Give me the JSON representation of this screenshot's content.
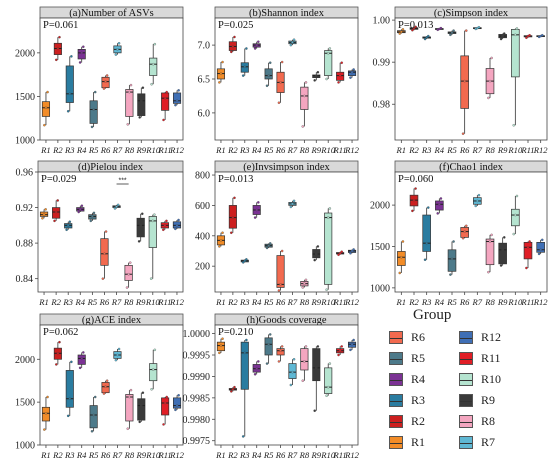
{
  "categories": [
    "R1",
    "R2",
    "R3",
    "R4",
    "R5",
    "R6",
    "R7",
    "R8",
    "R9",
    "R10",
    "R11",
    "R12"
  ],
  "colors": {
    "R1": "#f28c28",
    "R2": "#cc1f1f",
    "R3": "#2a7ca0",
    "R4": "#7b3294",
    "R5": "#4d7a8a",
    "R6": "#f26a4f",
    "R7": "#5fb8d4",
    "R8": "#f4a6c0",
    "R9": "#3a3a3a",
    "R10": "#b5e4d0",
    "R11": "#e01e26",
    "R12": "#3f6fb5"
  },
  "legend": {
    "title": "Group",
    "col1": [
      "R6",
      "R5",
      "R4",
      "R3",
      "R2",
      "R1"
    ],
    "col2": [
      "R12",
      "R11",
      "R10",
      "R9",
      "R8",
      "R7"
    ]
  },
  "chart_data": [
    {
      "type": "box",
      "title": "(a)Number of ASVs",
      "annotation": "P=0.061",
      "ylim": [
        1000,
        2400
      ],
      "yticks": [
        1000,
        1500,
        2000
      ],
      "boxes": [
        {
          "cat": "R1",
          "min": 1170,
          "q1": 1270,
          "median": 1370,
          "q3": 1440,
          "max": 1550
        },
        {
          "cat": "R2",
          "min": 1920,
          "q1": 1980,
          "median": 2050,
          "q3": 2110,
          "max": 2180
        },
        {
          "cat": "R3",
          "min": 1330,
          "q1": 1430,
          "median": 1530,
          "q3": 1850,
          "max": 1960
        },
        {
          "cat": "R4",
          "min": 1890,
          "q1": 1930,
          "median": 2000,
          "q3": 2040,
          "max": 2070
        },
        {
          "cat": "R5",
          "min": 1150,
          "q1": 1190,
          "median": 1350,
          "q3": 1450,
          "max": 1550
        },
        {
          "cat": "R6",
          "min": 1590,
          "q1": 1600,
          "median": 1670,
          "q3": 1720,
          "max": 1740
        },
        {
          "cat": "R7",
          "min": 1980,
          "q1": 2000,
          "median": 2040,
          "q3": 2080,
          "max": 2110
        },
        {
          "cat": "R8",
          "min": 1180,
          "q1": 1270,
          "median": 1550,
          "q3": 1580,
          "max": 1630
        },
        {
          "cat": "R9",
          "min": 1260,
          "q1": 1280,
          "median": 1450,
          "q3": 1530,
          "max": 1600
        },
        {
          "cat": "R10",
          "min": 1640,
          "q1": 1740,
          "median": 1870,
          "q3": 1940,
          "max": 2100
        },
        {
          "cat": "R11",
          "min": 1230,
          "q1": 1340,
          "median": 1480,
          "q3": 1540,
          "max": 1550
        },
        {
          "cat": "R12",
          "min": 1400,
          "q1": 1420,
          "median": 1450,
          "q3": 1540,
          "max": 1570
        }
      ]
    },
    {
      "type": "box",
      "title": "(b)Shannon index",
      "annotation": "P=0.025",
      "ylim": [
        5.6,
        7.4
      ],
      "yticks": [
        6.0,
        6.5,
        7.0
      ],
      "boxes": [
        {
          "cat": "R1",
          "min": 6.45,
          "q1": 6.5,
          "median": 6.58,
          "q3": 6.65,
          "max": 6.75
        },
        {
          "cat": "R2",
          "min": 6.9,
          "q1": 6.92,
          "median": 6.98,
          "q3": 7.05,
          "max": 7.12
        },
        {
          "cat": "R3",
          "min": 6.55,
          "q1": 6.6,
          "median": 6.68,
          "q3": 6.74,
          "max": 6.95
        },
        {
          "cat": "R4",
          "min": 6.95,
          "q1": 6.97,
          "median": 7.0,
          "q3": 7.02,
          "max": 7.05
        },
        {
          "cat": "R5",
          "min": 6.4,
          "q1": 6.5,
          "median": 6.55,
          "q3": 6.65,
          "max": 6.74
        },
        {
          "cat": "R6",
          "min": 6.15,
          "q1": 6.3,
          "median": 6.45,
          "q3": 6.6,
          "max": 6.75
        },
        {
          "cat": "R7",
          "min": 7.0,
          "q1": 7.02,
          "median": 7.04,
          "q3": 7.06,
          "max": 7.08
        },
        {
          "cat": "R8",
          "min": 5.8,
          "q1": 6.05,
          "median": 6.25,
          "q3": 6.38,
          "max": 6.45
        },
        {
          "cat": "R9",
          "min": 6.48,
          "q1": 6.52,
          "median": 6.55,
          "q3": 6.56,
          "max": 6.6
        },
        {
          "cat": "R10",
          "min": 6.5,
          "q1": 6.55,
          "median": 6.88,
          "q3": 6.92,
          "max": 6.95
        },
        {
          "cat": "R11",
          "min": 6.45,
          "q1": 6.48,
          "median": 6.55,
          "q3": 6.6,
          "max": 6.74
        },
        {
          "cat": "R12",
          "min": 6.52,
          "q1": 6.55,
          "median": 6.6,
          "q3": 6.62,
          "max": 6.64
        }
      ]
    },
    {
      "type": "box",
      "title": "(c)Simpson index",
      "annotation": "P=0.013",
      "ylim": [
        0.9715,
        1.0005
      ],
      "yticks": [
        0.98,
        0.99,
        1.0
      ],
      "boxes": [
        {
          "cat": "R1",
          "min": 0.9968,
          "q1": 0.997,
          "median": 0.9972,
          "q3": 0.9975,
          "max": 0.9978
        },
        {
          "cat": "R2",
          "min": 0.9976,
          "q1": 0.9978,
          "median": 0.998,
          "q3": 0.9982,
          "max": 0.9984
        },
        {
          "cat": "R3",
          "min": 0.9955,
          "q1": 0.9957,
          "median": 0.9959,
          "q3": 0.996,
          "max": 0.9962
        },
        {
          "cat": "R4",
          "min": 0.9977,
          "q1": 0.9978,
          "median": 0.9979,
          "q3": 0.998,
          "max": 0.9981
        },
        {
          "cat": "R5",
          "min": 0.9965,
          "q1": 0.9968,
          "median": 0.997,
          "q3": 0.9972,
          "max": 0.9975
        },
        {
          "cat": "R6",
          "min": 0.973,
          "q1": 0.979,
          "median": 0.9855,
          "q3": 0.9915,
          "max": 0.9975
        },
        {
          "cat": "R7",
          "min": 0.9979,
          "q1": 0.998,
          "median": 0.9981,
          "q3": 0.9982,
          "max": 0.9983
        },
        {
          "cat": "R8",
          "min": 0.9815,
          "q1": 0.9825,
          "median": 0.9855,
          "q3": 0.9885,
          "max": 0.991
        },
        {
          "cat": "R9",
          "min": 0.9955,
          "q1": 0.9958,
          "median": 0.9962,
          "q3": 0.9966,
          "max": 0.9968
        },
        {
          "cat": "R10",
          "min": 0.975,
          "q1": 0.9865,
          "median": 0.9965,
          "q3": 0.9978,
          "max": 0.998
        },
        {
          "cat": "R11",
          "min": 0.9958,
          "q1": 0.996,
          "median": 0.9962,
          "q3": 0.9963,
          "max": 0.9964
        },
        {
          "cat": "R12",
          "min": 0.996,
          "q1": 0.9961,
          "median": 0.9962,
          "q3": 0.9963,
          "max": 0.9964
        }
      ]
    },
    {
      "type": "box",
      "title": "(d)Pielou index",
      "annotation": "P=0.029",
      "ylim": [
        0.825,
        0.96
      ],
      "yticks": [
        0.84,
        0.88,
        0.92,
        0.96
      ],
      "significance": {
        "from": "R7",
        "to": "R8",
        "label": "***"
      },
      "boxes": [
        {
          "cat": "R1",
          "min": 0.908,
          "q1": 0.91,
          "median": 0.912,
          "q3": 0.915,
          "max": 0.918
        },
        {
          "cat": "R2",
          "min": 0.905,
          "q1": 0.908,
          "median": 0.915,
          "q3": 0.92,
          "max": 0.928
        },
        {
          "cat": "R3",
          "min": 0.895,
          "q1": 0.897,
          "median": 0.9,
          "q3": 0.902,
          "max": 0.904
        },
        {
          "cat": "R4",
          "min": 0.915,
          "q1": 0.916,
          "median": 0.918,
          "q3": 0.92,
          "max": 0.922
        },
        {
          "cat": "R5",
          "min": 0.905,
          "q1": 0.907,
          "median": 0.91,
          "q3": 0.912,
          "max": 0.914
        },
        {
          "cat": "R6",
          "min": 0.84,
          "q1": 0.855,
          "median": 0.868,
          "q3": 0.885,
          "max": 0.893
        },
        {
          "cat": "R7",
          "min": 0.919,
          "q1": 0.92,
          "median": 0.921,
          "q3": 0.922,
          "max": 0.923
        },
        {
          "cat": "R8",
          "min": 0.83,
          "q1": 0.838,
          "median": 0.845,
          "q3": 0.855,
          "max": 0.858
        },
        {
          "cat": "R9",
          "min": 0.882,
          "q1": 0.887,
          "median": 0.9,
          "q3": 0.908,
          "max": 0.913
        },
        {
          "cat": "R10",
          "min": 0.84,
          "q1": 0.875,
          "median": 0.905,
          "q3": 0.91,
          "max": 0.912
        },
        {
          "cat": "R11",
          "min": 0.895,
          "q1": 0.897,
          "median": 0.9,
          "q3": 0.903,
          "max": 0.905
        },
        {
          "cat": "R12",
          "min": 0.896,
          "q1": 0.897,
          "median": 0.9,
          "q3": 0.904,
          "max": 0.906
        }
      ]
    },
    {
      "type": "box",
      "title": "(e)Invsimpson  index",
      "annotation": "P=0.013",
      "ylim": [
        30,
        820
      ],
      "yticks": [
        200,
        400,
        600,
        800
      ],
      "boxes": [
        {
          "cat": "R1",
          "min": 330,
          "q1": 340,
          "median": 370,
          "q3": 400,
          "max": 420
        },
        {
          "cat": "R2",
          "min": 420,
          "q1": 450,
          "median": 520,
          "q3": 600,
          "max": 650
        },
        {
          "cat": "R3",
          "min": 225,
          "q1": 228,
          "median": 235,
          "q3": 240,
          "max": 245
        },
        {
          "cat": "R4",
          "min": 520,
          "q1": 540,
          "median": 570,
          "q3": 600,
          "max": 620
        },
        {
          "cat": "R5",
          "min": 320,
          "q1": 325,
          "median": 335,
          "q3": 345,
          "max": 350
        },
        {
          "cat": "R6",
          "min": 40,
          "q1": 60,
          "median": 80,
          "q3": 270,
          "max": 300
        },
        {
          "cat": "R7",
          "min": 590,
          "q1": 600,
          "median": 610,
          "q3": 620,
          "max": 630
        },
        {
          "cat": "R8",
          "min": 60,
          "q1": 70,
          "median": 85,
          "q3": 100,
          "max": 110
        },
        {
          "cat": "R9",
          "min": 240,
          "q1": 255,
          "median": 280,
          "q3": 310,
          "max": 330
        },
        {
          "cat": "R10",
          "min": 45,
          "q1": 80,
          "median": 520,
          "q3": 550,
          "max": 580
        },
        {
          "cat": "R11",
          "min": 275,
          "q1": 280,
          "median": 285,
          "q3": 290,
          "max": 295
        },
        {
          "cat": "R12",
          "min": 285,
          "q1": 290,
          "median": 300,
          "q3": 305,
          "max": 310
        }
      ]
    },
    {
      "type": "box",
      "title": "(f)Chao1 index",
      "annotation": "P=0.060",
      "ylim": [
        950,
        2400
      ],
      "yticks": [
        1000,
        1500,
        2000
      ],
      "boxes": [
        {
          "cat": "R1",
          "min": 1180,
          "q1": 1270,
          "median": 1370,
          "q3": 1440,
          "max": 1560
        },
        {
          "cat": "R2",
          "min": 1930,
          "q1": 1990,
          "median": 2060,
          "q3": 2120,
          "max": 2200
        },
        {
          "cat": "R3",
          "min": 1340,
          "q1": 1440,
          "median": 1540,
          "q3": 1880,
          "max": 1970
        },
        {
          "cat": "R4",
          "min": 1900,
          "q1": 1940,
          "median": 2010,
          "q3": 2050,
          "max": 2080
        },
        {
          "cat": "R5",
          "min": 1160,
          "q1": 1200,
          "median": 1350,
          "q3": 1460,
          "max": 1560
        },
        {
          "cat": "R6",
          "min": 1600,
          "q1": 1610,
          "median": 1680,
          "q3": 1730,
          "max": 1750
        },
        {
          "cat": "R7",
          "min": 1990,
          "q1": 2010,
          "median": 2050,
          "q3": 2090,
          "max": 2120
        },
        {
          "cat": "R8",
          "min": 1190,
          "q1": 1280,
          "median": 1560,
          "q3": 1590,
          "max": 1640
        },
        {
          "cat": "R9",
          "min": 1270,
          "q1": 1290,
          "median": 1460,
          "q3": 1540,
          "max": 1610
        },
        {
          "cat": "R10",
          "min": 1650,
          "q1": 1750,
          "median": 1880,
          "q3": 1950,
          "max": 2110
        },
        {
          "cat": "R11",
          "min": 1240,
          "q1": 1350,
          "median": 1490,
          "q3": 1550,
          "max": 1560
        },
        {
          "cat": "R12",
          "min": 1410,
          "q1": 1430,
          "median": 1460,
          "q3": 1550,
          "max": 1580
        }
      ]
    },
    {
      "type": "box",
      "title": "(g)ACE index",
      "annotation": "P=0.062",
      "ylim": [
        1000,
        2400
      ],
      "yticks": [
        1000,
        1500,
        2000
      ],
      "boxes": [
        {
          "cat": "R1",
          "min": 1180,
          "q1": 1280,
          "median": 1370,
          "q3": 1440,
          "max": 1560
        },
        {
          "cat": "R2",
          "min": 1940,
          "q1": 2000,
          "median": 2070,
          "q3": 2130,
          "max": 2200
        },
        {
          "cat": "R3",
          "min": 1340,
          "q1": 1440,
          "median": 1540,
          "q3": 1870,
          "max": 1970
        },
        {
          "cat": "R4",
          "min": 1900,
          "q1": 1940,
          "median": 2010,
          "q3": 2050,
          "max": 2080
        },
        {
          "cat": "R5",
          "min": 1160,
          "q1": 1200,
          "median": 1350,
          "q3": 1460,
          "max": 1560
        },
        {
          "cat": "R6",
          "min": 1600,
          "q1": 1610,
          "median": 1680,
          "q3": 1730,
          "max": 1750
        },
        {
          "cat": "R7",
          "min": 1990,
          "q1": 2010,
          "median": 2050,
          "q3": 2090,
          "max": 2120
        },
        {
          "cat": "R8",
          "min": 1190,
          "q1": 1280,
          "median": 1560,
          "q3": 1590,
          "max": 1640
        },
        {
          "cat": "R9",
          "min": 1270,
          "q1": 1290,
          "median": 1460,
          "q3": 1540,
          "max": 1610
        },
        {
          "cat": "R10",
          "min": 1650,
          "q1": 1750,
          "median": 1880,
          "q3": 1950,
          "max": 2110
        },
        {
          "cat": "R11",
          "min": 1240,
          "q1": 1350,
          "median": 1490,
          "q3": 1550,
          "max": 1560
        },
        {
          "cat": "R12",
          "min": 1410,
          "q1": 1430,
          "median": 1460,
          "q3": 1550,
          "max": 1580
        }
      ]
    },
    {
      "type": "box",
      "title": "(h)Goods coverage",
      "annotation": "P=0.210",
      "ylim": [
        0.9974,
        1.0002
      ],
      "yticks": [
        0.9975,
        0.998,
        0.9985,
        0.999,
        0.9995,
        1.0
      ],
      "boxes": [
        {
          "cat": "R1",
          "min": 0.99955,
          "q1": 0.9996,
          "median": 0.99972,
          "q3": 0.9998,
          "max": 0.99988
        },
        {
          "cat": "R2",
          "min": 0.99865,
          "q1": 0.99868,
          "median": 0.9987,
          "q3": 0.99872,
          "max": 0.99875
        },
        {
          "cat": "R3",
          "min": 0.9976,
          "q1": 0.9987,
          "median": 0.99955,
          "q3": 0.9998,
          "max": 0.99985
        },
        {
          "cat": "R4",
          "min": 0.99905,
          "q1": 0.9991,
          "median": 0.99918,
          "q3": 0.99928,
          "max": 0.99935
        },
        {
          "cat": "R5",
          "min": 0.9993,
          "q1": 0.9995,
          "median": 0.99975,
          "q3": 0.9999,
          "max": 0.99998
        },
        {
          "cat": "R6",
          "min": 0.99935,
          "q1": 0.9995,
          "median": 0.9996,
          "q3": 0.99965,
          "max": 0.9997
        },
        {
          "cat": "R7",
          "min": 0.9988,
          "q1": 0.99895,
          "median": 0.9991,
          "q3": 0.9993,
          "max": 0.9994
        },
        {
          "cat": "R8",
          "min": 0.9989,
          "q1": 0.99915,
          "median": 0.99935,
          "q3": 0.99965,
          "max": 0.9997
        },
        {
          "cat": "R9",
          "min": 0.9982,
          "q1": 0.9989,
          "median": 0.9992,
          "q3": 0.99965,
          "max": 0.9997
        },
        {
          "cat": "R10",
          "min": 0.99855,
          "q1": 0.9986,
          "median": 0.99875,
          "q3": 0.9992,
          "max": 0.9993
        },
        {
          "cat": "R11",
          "min": 0.9995,
          "q1": 0.99955,
          "median": 0.9996,
          "q3": 0.99965,
          "max": 0.9997
        },
        {
          "cat": "R12",
          "min": 0.99962,
          "q1": 0.99968,
          "median": 0.99975,
          "q3": 0.9998,
          "max": 0.99985
        }
      ]
    }
  ]
}
